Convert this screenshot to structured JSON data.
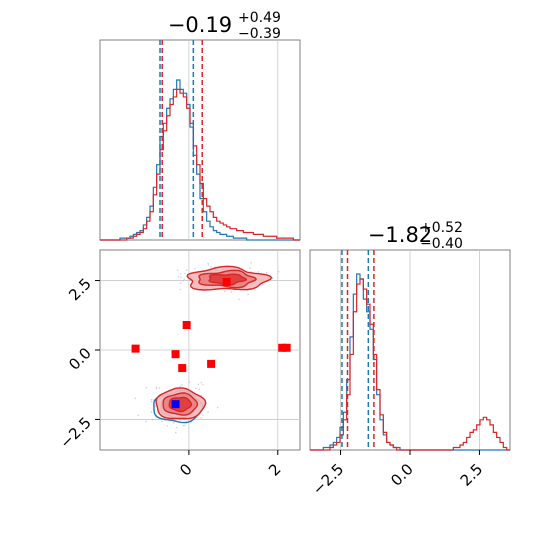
{
  "colors": {
    "series_a": "#1f77b4",
    "series_b": "#d62728",
    "marker_red": "#ff0000",
    "marker_blue": "#0000ff",
    "grid": "#c8c8c8",
    "frame": "#808080"
  },
  "chart_data": {
    "type": "corner",
    "parameters": [
      {
        "title_value": "−0.19",
        "title_upper": "+0.49",
        "title_lower": "−0.39",
        "range": [
          -2.0,
          2.5
        ],
        "ticks": [
          0,
          2
        ],
        "tick_labels": [
          "0",
          "2"
        ],
        "quantiles_a": [
          -0.65,
          0.1
        ],
        "quantiles_b": [
          -0.6,
          0.3
        ]
      },
      {
        "title_value": "−1.82",
        "title_upper": "+0.52",
        "title_lower": "−0.40",
        "range": [
          -3.6,
          3.6
        ],
        "ticks": [
          -2.5,
          0.0,
          2.5
        ],
        "tick_labels": [
          "−2.5",
          "0.0",
          "2.5"
        ],
        "quantiles_a": [
          -2.45,
          -1.5
        ],
        "quantiles_b": [
          -2.25,
          -1.3
        ]
      }
    ],
    "hist1_bins": [
      -2.0,
      2.5
    ],
    "hist1_a": [
      0,
      0,
      0,
      0,
      0,
      0,
      1,
      1,
      1,
      2,
      3,
      4,
      5,
      8,
      12,
      18,
      28,
      40,
      55,
      62,
      70,
      75,
      80,
      85,
      80,
      78,
      72,
      60,
      45,
      35,
      22,
      15,
      10,
      7,
      5,
      4,
      3,
      3,
      2,
      2,
      1,
      1,
      1,
      1,
      0,
      0,
      0,
      0,
      0,
      0,
      0,
      0,
      0,
      0,
      0,
      0,
      0,
      0,
      0,
      0
    ],
    "hist1_b": [
      0,
      0,
      0,
      0,
      0,
      0,
      0,
      0,
      1,
      1,
      2,
      3,
      4,
      6,
      10,
      15,
      24,
      35,
      48,
      58,
      66,
      72,
      76,
      80,
      78,
      76,
      70,
      62,
      50,
      40,
      30,
      22,
      18,
      15,
      12,
      10,
      9,
      8,
      7,
      6,
      6,
      5,
      5,
      4,
      4,
      4,
      3,
      3,
      3,
      2,
      2,
      2,
      2,
      1,
      1,
      1,
      1,
      1,
      0,
      0
    ],
    "hist2_bins": [
      -3.6,
      3.6
    ],
    "hist2_a": [
      0,
      0,
      0,
      0,
      1,
      1,
      2,
      3,
      5,
      9,
      15,
      28,
      45,
      62,
      70,
      68,
      60,
      55,
      48,
      36,
      22,
      12,
      6,
      3,
      2,
      1,
      1,
      0,
      0,
      0,
      0,
      0,
      0,
      0,
      0,
      0,
      0,
      0,
      0,
      0,
      0,
      0,
      0,
      0,
      0,
      0,
      0,
      0,
      0,
      0,
      0,
      0,
      0,
      0,
      0,
      0,
      0,
      0,
      0,
      0
    ],
    "hist2_b": [
      0,
      0,
      0,
      0,
      0,
      0,
      1,
      2,
      3,
      6,
      12,
      22,
      38,
      55,
      66,
      68,
      64,
      58,
      50,
      38,
      24,
      14,
      7,
      3,
      2,
      1,
      0,
      0,
      0,
      0,
      0,
      0,
      0,
      0,
      0,
      0,
      0,
      0,
      0,
      0,
      0,
      0,
      0,
      1,
      1,
      2,
      3,
      5,
      7,
      8,
      10,
      12,
      13,
      12,
      10,
      7,
      5,
      3,
      1,
      0
    ],
    "x_ticks_2d": [
      0,
      2
    ],
    "y_ticks_2d": [
      -2.5,
      0.0,
      2.5
    ],
    "y_tick_labels_2d": [
      "−2.5",
      "0.0",
      "2.5"
    ],
    "modes": [
      {
        "cx": -0.2,
        "cy": -1.95,
        "sx": 0.55,
        "sy": 0.55
      },
      {
        "cx": 0.85,
        "cy": 2.55,
        "sx": 0.9,
        "sy": 0.4
      }
    ],
    "markers_red": [
      {
        "x": 0.85,
        "y": 2.45
      },
      {
        "x": -0.05,
        "y": 0.9
      },
      {
        "x": -1.2,
        "y": 0.05
      },
      {
        "x": -0.3,
        "y": -0.15
      },
      {
        "x": -0.15,
        "y": -0.65
      },
      {
        "x": 0.5,
        "y": -0.5
      },
      {
        "x": 2.1,
        "y": 0.08
      },
      {
        "x": 2.2,
        "y": 0.08
      }
    ],
    "marker_blue": {
      "x": -0.3,
      "y": -1.95
    }
  }
}
